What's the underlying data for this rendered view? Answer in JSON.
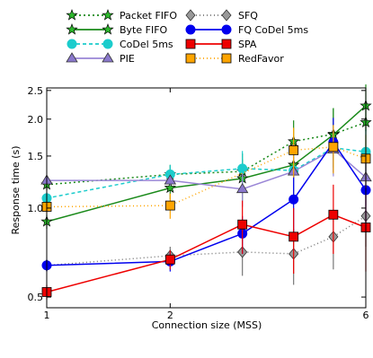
{
  "chart_data": {
    "type": "line",
    "xlabel": "Connection size (MSS)",
    "ylabel": "Response time (s)",
    "x_scale": "log",
    "y_scale": "log",
    "xlim": [
      1,
      6
    ],
    "ylim": [
      0.46,
      2.55
    ],
    "x_ticks": [
      {
        "value": 1,
        "label": "1"
      },
      {
        "value": 2,
        "label": "2"
      },
      {
        "value": 6,
        "label": "6"
      }
    ],
    "y_ticks": [
      {
        "value": 0.5,
        "label": "0.5"
      },
      {
        "value": 1.0,
        "label": "1.0"
      },
      {
        "value": 1.5,
        "label": "1.5"
      },
      {
        "value": 2.0,
        "label": "2.0"
      },
      {
        "value": 2.5,
        "label": "2.5"
      }
    ],
    "x": [
      1,
      2,
      3,
      4,
      5,
      6
    ],
    "grid": false,
    "legend_position": "top",
    "series": [
      {
        "name": "Packet FIFO",
        "color": "#1a8a1a",
        "dash": "2,3",
        "marker": "star",
        "marker_fill": "#2db82d",
        "values": [
          1.2,
          1.3,
          1.33,
          1.68,
          1.78,
          1.95
        ],
        "err": [
          0.05,
          0.1,
          0.2,
          0.3,
          0.4,
          0.35
        ]
      },
      {
        "name": "Byte FIFO",
        "color": "#1a8a1a",
        "dash": "",
        "marker": "star",
        "marker_fill": "#2db82d",
        "values": [
          0.9,
          1.17,
          1.26,
          1.4,
          1.77,
          2.22
        ],
        "err": [
          0.05,
          0.1,
          0.2,
          0.35,
          0.4,
          0.4
        ]
      },
      {
        "name": "CoDel 5ms",
        "color": "#1ccccc",
        "dash": "4,3",
        "marker": "circle",
        "marker_fill": "#1ccccc",
        "values": [
          1.08,
          1.3,
          1.36,
          1.34,
          1.6,
          1.55
        ],
        "err": [
          0.05,
          0.1,
          0.2,
          0.2,
          0.3,
          0.3
        ]
      },
      {
        "name": "PIE",
        "color": "#9a86d6",
        "dash": "",
        "marker": "triangle",
        "marker_fill": "#8a78cc",
        "values": [
          1.24,
          1.24,
          1.16,
          1.33,
          1.58,
          1.27
        ],
        "err": [
          0.03,
          0.05,
          0.15,
          0.2,
          0.3,
          0.25
        ]
      },
      {
        "name": "SFQ",
        "color": "#777777",
        "dash": "1,3",
        "marker": "diamond",
        "marker_fill": "#999999",
        "values": [
          0.64,
          0.69,
          0.71,
          0.7,
          0.8,
          0.94
        ],
        "err": [
          0.02,
          0.05,
          0.12,
          0.15,
          0.18,
          0.2
        ]
      },
      {
        "name": "FQ CoDel 5ms",
        "color": "#0000ee",
        "dash": "",
        "marker": "circle",
        "marker_fill": "#0000ee",
        "values": [
          0.64,
          0.66,
          0.82,
          1.07,
          1.67,
          1.15
        ],
        "err": [
          0.03,
          0.05,
          0.12,
          0.25,
          0.35,
          0.3
        ]
      },
      {
        "name": "SPA",
        "color": "#ee0000",
        "dash": "",
        "marker": "square",
        "marker_fill": "#ee0000",
        "values": [
          0.52,
          0.67,
          0.88,
          0.8,
          0.95,
          0.86
        ],
        "err": [
          0.03,
          0.05,
          0.18,
          0.2,
          0.25,
          0.25
        ]
      },
      {
        "name": "RedFavor",
        "color": "#ffa500",
        "dash": "1,3",
        "marker": "square",
        "marker_fill": "#ffa500",
        "values": [
          1.01,
          1.02,
          null,
          1.57,
          1.61,
          1.47
        ],
        "err": [
          0.05,
          0.1,
          0,
          0.3,
          0.3,
          0.3
        ]
      }
    ]
  }
}
